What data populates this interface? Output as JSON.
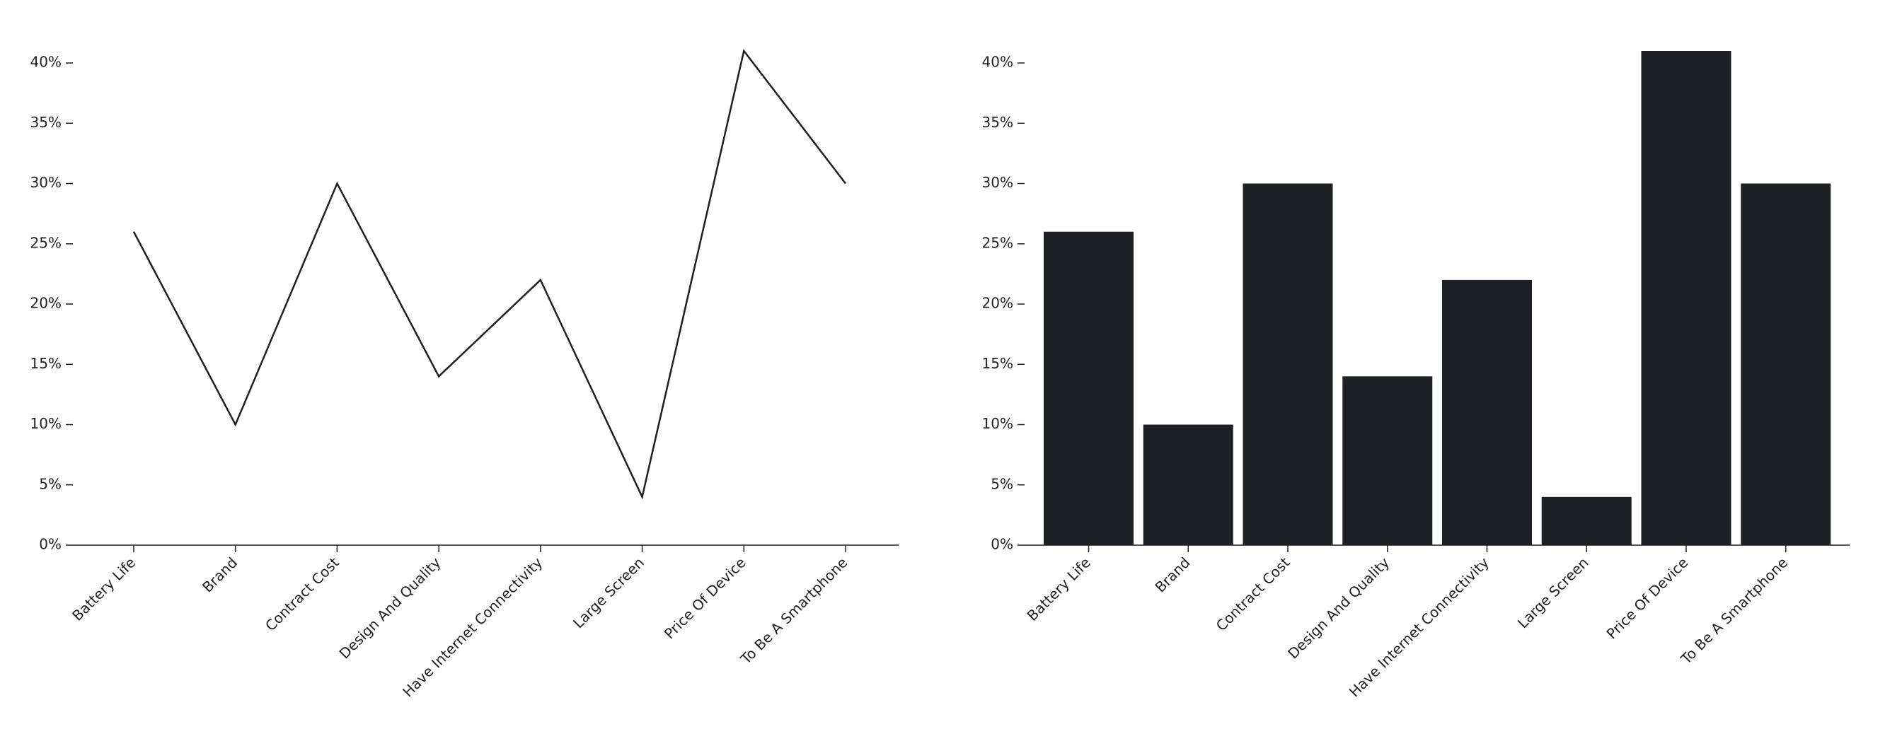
{
  "chart_data": [
    {
      "type": "line",
      "color": "#1e2024",
      "categories": [
        "Battery Life",
        "Brand",
        "Contract Cost",
        "Design And Quality",
        "Have Internet Connectivity",
        "Large Screen",
        "Price Of Device",
        "To Be A Smartphone"
      ],
      "values": [
        26,
        10,
        30,
        14,
        22,
        4,
        41,
        30
      ],
      "ylim": [
        0,
        41
      ],
      "yticks": [
        {
          "value": 0,
          "label": "0%"
        },
        {
          "value": 5,
          "label": "5%"
        },
        {
          "value": 10,
          "label": "10%"
        },
        {
          "value": 15,
          "label": "15%"
        },
        {
          "value": 20,
          "label": "20%"
        },
        {
          "value": 25,
          "label": "25%"
        },
        {
          "value": 30,
          "label": "30%"
        },
        {
          "value": 35,
          "label": "35%"
        },
        {
          "value": 40,
          "label": "40%"
        }
      ]
    },
    {
      "type": "bar",
      "color": "#1e2024",
      "categories": [
        "Battery Life",
        "Brand",
        "Contract Cost",
        "Design And Quality",
        "Have Internet Connectivity",
        "Large Screen",
        "Price Of Device",
        "To Be A Smartphone"
      ],
      "values": [
        26,
        10,
        30,
        14,
        22,
        4,
        41,
        30
      ],
      "ylim": [
        0,
        41
      ],
      "yticks": [
        {
          "value": 0,
          "label": "0%"
        },
        {
          "value": 5,
          "label": "5%"
        },
        {
          "value": 10,
          "label": "10%"
        },
        {
          "value": 15,
          "label": "15%"
        },
        {
          "value": 20,
          "label": "20%"
        },
        {
          "value": 25,
          "label": "25%"
        },
        {
          "value": 30,
          "label": "30%"
        },
        {
          "value": 35,
          "label": "35%"
        },
        {
          "value": 40,
          "label": "40%"
        }
      ]
    }
  ]
}
